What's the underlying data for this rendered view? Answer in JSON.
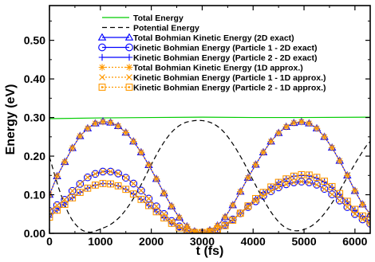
{
  "chart_data": {
    "type": "line",
    "title": "",
    "xlabel": "t (fs)",
    "ylabel": "Energy (eV)",
    "xlim": [
      0,
      6300
    ],
    "ylim": [
      0,
      0.59
    ],
    "xticks": [
      0,
      1000,
      2000,
      3000,
      4000,
      5000,
      6000
    ],
    "xtick_labels": [
      "0",
      "1000",
      "2000",
      "3000",
      "4000",
      "5000",
      "6000"
    ],
    "yticks": [
      0.0,
      0.1,
      0.2,
      0.3,
      0.4,
      0.5
    ],
    "ytick_labels": [
      "0.00",
      "0.10",
      "0.20",
      "0.30",
      "0.40",
      "0.50"
    ],
    "grid": false,
    "legend_position": "top-center",
    "series": [
      {
        "name": "Total Energy",
        "color": "#00cc00",
        "style": "solid",
        "marker": "none",
        "x": [
          0,
          1000,
          2000,
          3000,
          4000,
          5000,
          6300
        ],
        "y": [
          0.297,
          0.299,
          0.3,
          0.301,
          0.3,
          0.3,
          0.301
        ]
      },
      {
        "name": "Potential Energy",
        "color": "#000000",
        "style": "dashed",
        "marker": "none",
        "x": [
          0,
          200,
          400,
          600,
          800,
          1000,
          1200,
          1400,
          1600,
          1800,
          2000,
          2200,
          2400,
          2600,
          2800,
          3000,
          3200,
          3400,
          3600,
          3800,
          4000,
          4200,
          4400,
          4600,
          4800,
          5000,
          5200,
          5400,
          5600,
          5800,
          6000,
          6200,
          6300
        ],
        "y": [
          0.198,
          0.11,
          0.045,
          0.012,
          0.003,
          0.011,
          0.023,
          0.045,
          0.08,
          0.126,
          0.178,
          0.226,
          0.262,
          0.283,
          0.291,
          0.292,
          0.285,
          0.266,
          0.232,
          0.188,
          0.137,
          0.088,
          0.046,
          0.018,
          0.007,
          0.01,
          0.024,
          0.051,
          0.089,
          0.134,
          0.18,
          0.222,
          0.238
        ]
      },
      {
        "name": "Total Bohmian Kinetic Energy (2D exact)",
        "color": "#0000ff",
        "style": "solid",
        "marker": "triangle",
        "x": [
          0,
          150,
          300,
          450,
          600,
          750,
          900,
          1050,
          1200,
          1350,
          1500,
          1650,
          1800,
          1950,
          2100,
          2250,
          2400,
          2550,
          2700,
          2850,
          3000,
          3150,
          3300,
          3450,
          3600,
          3750,
          3900,
          4050,
          4200,
          4350,
          4500,
          4650,
          4800,
          4950,
          5100,
          5250,
          5400,
          5550,
          5700,
          5850,
          6000,
          6150,
          6300
        ],
        "y": [
          0.1,
          0.148,
          0.185,
          0.221,
          0.252,
          0.272,
          0.285,
          0.29,
          0.287,
          0.278,
          0.261,
          0.238,
          0.21,
          0.177,
          0.141,
          0.104,
          0.07,
          0.041,
          0.018,
          0.005,
          0.002,
          0.008,
          0.02,
          0.042,
          0.073,
          0.108,
          0.144,
          0.178,
          0.21,
          0.238,
          0.26,
          0.276,
          0.286,
          0.289,
          0.285,
          0.272,
          0.25,
          0.222,
          0.188,
          0.15,
          0.11,
          0.075,
          0.05
        ]
      },
      {
        "name": "Kinetic Bohmian Energy (Particle 1 - 2D exact)",
        "color": "#0000ff",
        "style": "solid",
        "marker": "circle",
        "x": [
          0,
          150,
          300,
          450,
          600,
          750,
          900,
          1050,
          1200,
          1350,
          1500,
          1650,
          1800,
          1950,
          2100,
          2250,
          2400,
          2550,
          2700,
          2850,
          3000,
          3150,
          3300,
          3450,
          3600,
          3750,
          3900,
          4050,
          4200,
          4350,
          4500,
          4650,
          4800,
          4950,
          5100,
          5250,
          5400,
          5550,
          5700,
          5850,
          6000,
          6150,
          6300
        ],
        "y": [
          0.058,
          0.073,
          0.087,
          0.11,
          0.128,
          0.145,
          0.154,
          0.16,
          0.16,
          0.155,
          0.144,
          0.129,
          0.111,
          0.09,
          0.07,
          0.05,
          0.032,
          0.018,
          0.008,
          0.003,
          0.002,
          0.005,
          0.011,
          0.022,
          0.036,
          0.052,
          0.068,
          0.083,
          0.097,
          0.109,
          0.119,
          0.127,
          0.132,
          0.134,
          0.132,
          0.126,
          0.115,
          0.101,
          0.085,
          0.068,
          0.05,
          0.036,
          0.025
        ]
      },
      {
        "name": "Kinetic Bohmian Energy (Particle 2 - 2D exact)",
        "color": "#0000ff",
        "style": "solid",
        "marker": "plus",
        "x": [
          0,
          150,
          300,
          450,
          600,
          750,
          900,
          1050,
          1200,
          1350,
          1500,
          1650,
          1800,
          1950,
          2100,
          2250,
          2400,
          2550,
          2700,
          2850,
          3000,
          3150,
          3300,
          3450,
          3600,
          3750,
          3900,
          4050,
          4200,
          4350,
          4500,
          4650,
          4800,
          4950,
          5100,
          5250,
          5400,
          5550,
          5700,
          5850,
          6000,
          6150,
          6300
        ],
        "y": [
          0.042,
          0.06,
          0.075,
          0.092,
          0.106,
          0.117,
          0.125,
          0.129,
          0.128,
          0.123,
          0.114,
          0.102,
          0.088,
          0.072,
          0.056,
          0.04,
          0.026,
          0.014,
          0.006,
          0.002,
          0.002,
          0.004,
          0.01,
          0.02,
          0.034,
          0.052,
          0.071,
          0.09,
          0.106,
          0.12,
          0.132,
          0.141,
          0.148,
          0.15,
          0.149,
          0.143,
          0.133,
          0.119,
          0.101,
          0.081,
          0.06,
          0.044,
          0.032
        ]
      },
      {
        "name": "Total Bohmian Kinetic Energy (1D approx.)",
        "color": "#ff9900",
        "style": "dotted",
        "marker": "asterisk",
        "x": [
          0,
          150,
          300,
          450,
          600,
          750,
          900,
          1050,
          1200,
          1350,
          1500,
          1650,
          1800,
          1950,
          2100,
          2250,
          2400,
          2550,
          2700,
          2850,
          3000,
          3150,
          3300,
          3450,
          3600,
          3750,
          3900,
          4050,
          4200,
          4350,
          4500,
          4650,
          4800,
          4950,
          5100,
          5250,
          5400,
          5550,
          5700,
          5850,
          6000,
          6150,
          6300
        ],
        "y": [
          0.1,
          0.148,
          0.185,
          0.221,
          0.252,
          0.272,
          0.285,
          0.289,
          0.287,
          0.278,
          0.261,
          0.238,
          0.21,
          0.177,
          0.141,
          0.104,
          0.07,
          0.041,
          0.018,
          0.005,
          0.002,
          0.008,
          0.02,
          0.042,
          0.073,
          0.108,
          0.144,
          0.178,
          0.21,
          0.238,
          0.26,
          0.276,
          0.286,
          0.289,
          0.285,
          0.272,
          0.25,
          0.222,
          0.188,
          0.15,
          0.11,
          0.075,
          0.05
        ]
      },
      {
        "name": "Kinetic Bohmian Energy (Particle 1 - 1D approx.)",
        "color": "#ff9900",
        "style": "dotted",
        "marker": "cross",
        "x": [
          0,
          150,
          300,
          450,
          600,
          750,
          900,
          1050,
          1200,
          1350,
          1500,
          1650,
          1800,
          1950,
          2100,
          2250,
          2400,
          2550,
          2700,
          2850,
          3000,
          3150,
          3300,
          3450,
          3600,
          3750,
          3900,
          4050,
          4200,
          4350,
          4500,
          4650,
          4800,
          4950,
          5100,
          5250,
          5400,
          5550,
          5700,
          5850,
          6000,
          6150,
          6300
        ],
        "y": [
          0.058,
          0.073,
          0.087,
          0.11,
          0.128,
          0.145,
          0.154,
          0.16,
          0.16,
          0.155,
          0.144,
          0.129,
          0.111,
          0.09,
          0.07,
          0.05,
          0.032,
          0.018,
          0.008,
          0.003,
          0.002,
          0.005,
          0.011,
          0.022,
          0.036,
          0.052,
          0.068,
          0.083,
          0.097,
          0.109,
          0.119,
          0.127,
          0.132,
          0.134,
          0.132,
          0.126,
          0.115,
          0.101,
          0.085,
          0.068,
          0.05,
          0.036,
          0.025
        ]
      },
      {
        "name": "Kinetic Bohmian Energy (Particle 2 - 1D approx.)",
        "color": "#ff9900",
        "style": "dotted",
        "marker": "square",
        "x": [
          0,
          150,
          300,
          450,
          600,
          750,
          900,
          1050,
          1200,
          1350,
          1500,
          1650,
          1800,
          1950,
          2100,
          2250,
          2400,
          2550,
          2700,
          2850,
          3000,
          3150,
          3300,
          3450,
          3600,
          3750,
          3900,
          4050,
          4200,
          4350,
          4500,
          4650,
          4800,
          4950,
          5100,
          5250,
          5400,
          5550,
          5700,
          5850,
          6000,
          6150,
          6300
        ],
        "y": [
          0.042,
          0.06,
          0.075,
          0.092,
          0.106,
          0.117,
          0.125,
          0.129,
          0.128,
          0.123,
          0.114,
          0.102,
          0.088,
          0.072,
          0.056,
          0.04,
          0.026,
          0.014,
          0.006,
          0.002,
          0.002,
          0.004,
          0.01,
          0.02,
          0.034,
          0.052,
          0.071,
          0.09,
          0.106,
          0.12,
          0.132,
          0.141,
          0.148,
          0.152,
          0.151,
          0.145,
          0.135,
          0.121,
          0.103,
          0.083,
          0.062,
          0.045,
          0.033
        ]
      }
    ]
  }
}
